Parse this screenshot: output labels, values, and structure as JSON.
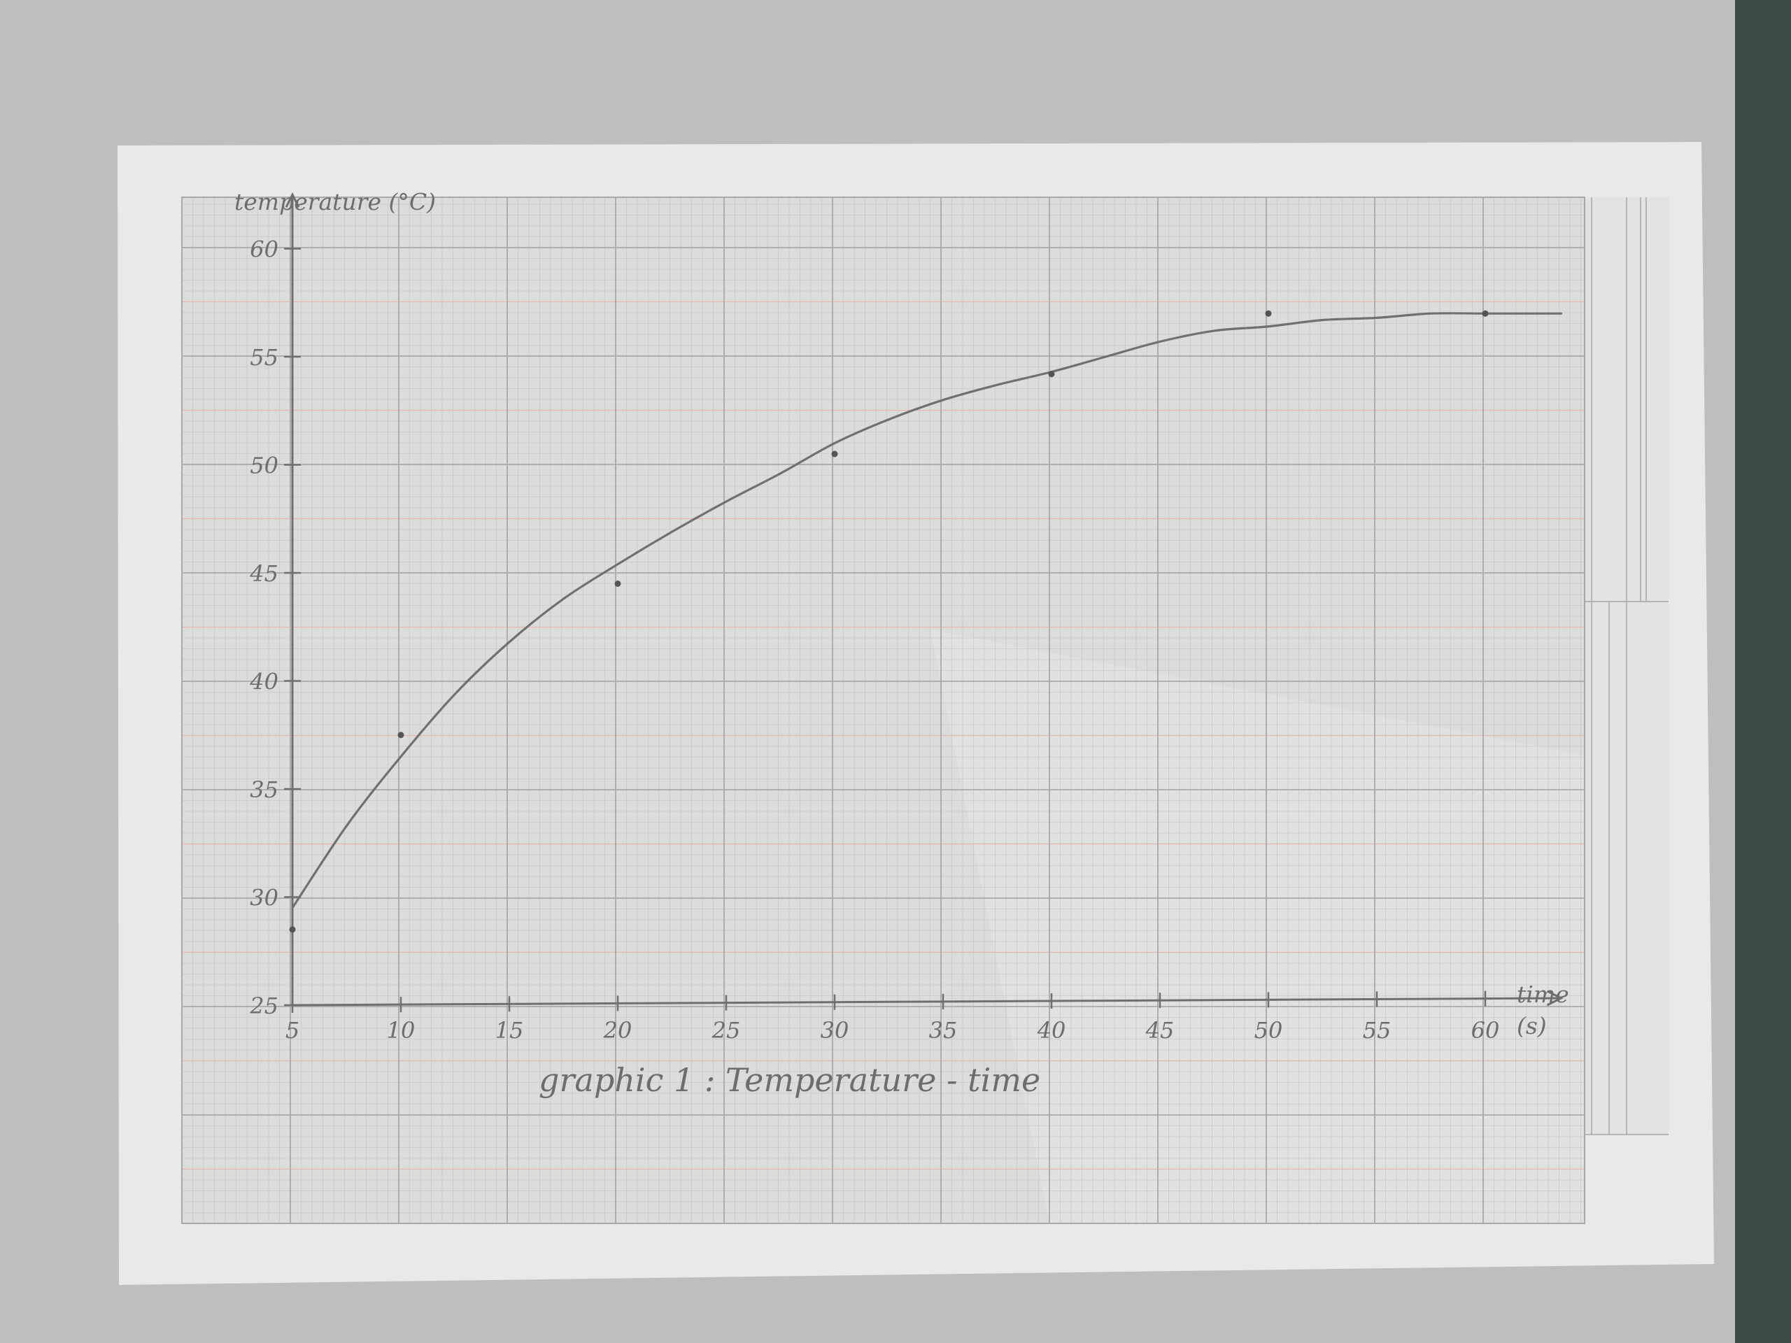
{
  "colors": {
    "background": "#bcbfbd",
    "paper": "#e9eae8",
    "grid_paper": "#dcdcda",
    "grid_fine": "#cacaca",
    "grid_major": "#a9a9a9",
    "grid_reddish": "#e2b6b0",
    "pencil": "#6f6f6f",
    "dark_edge": "#3c4a48"
  },
  "chart_data": {
    "type": "line",
    "title": "graphic 1 : Temperature - time",
    "ylabel": "temperature (°C)",
    "xlabel_line1": "time",
    "xlabel_line2": "(s)",
    "xlim": [
      5,
      63
    ],
    "ylim": [
      25,
      62
    ],
    "x_ticks": [
      "5",
      "10",
      "15",
      "20",
      "25",
      "30",
      "35",
      "40",
      "45",
      "50",
      "55",
      "60"
    ],
    "y_ticks": [
      "25",
      "30",
      "35",
      "40",
      "45",
      "50",
      "55",
      "60"
    ],
    "grid": true,
    "points": [
      {
        "x": 5,
        "y": 28.5
      },
      {
        "x": 10,
        "y": 37.5
      },
      {
        "x": 20,
        "y": 44.5
      },
      {
        "x": 30,
        "y": 50.5
      },
      {
        "x": 40,
        "y": 54.2
      },
      {
        "x": 50,
        "y": 57.0
      },
      {
        "x": 60,
        "y": 57.0
      }
    ],
    "curve": [
      {
        "x": 5,
        "y": 29.5
      },
      {
        "x": 7.5,
        "y": 33.3
      },
      {
        "x": 10,
        "y": 36.5
      },
      {
        "x": 12.5,
        "y": 39.4
      },
      {
        "x": 15,
        "y": 41.8
      },
      {
        "x": 17.5,
        "y": 43.8
      },
      {
        "x": 20,
        "y": 45.4
      },
      {
        "x": 22.5,
        "y": 46.9
      },
      {
        "x": 25,
        "y": 48.3
      },
      {
        "x": 27.5,
        "y": 49.6
      },
      {
        "x": 30,
        "y": 51.0
      },
      {
        "x": 32.5,
        "y": 52.1
      },
      {
        "x": 35,
        "y": 53.0
      },
      {
        "x": 37.5,
        "y": 53.7
      },
      {
        "x": 40,
        "y": 54.3
      },
      {
        "x": 42.5,
        "y": 55.0
      },
      {
        "x": 45,
        "y": 55.7
      },
      {
        "x": 47.5,
        "y": 56.2
      },
      {
        "x": 50,
        "y": 56.4
      },
      {
        "x": 52.5,
        "y": 56.7
      },
      {
        "x": 55,
        "y": 56.8
      },
      {
        "x": 57.5,
        "y": 57.0
      },
      {
        "x": 60,
        "y": 57.0
      },
      {
        "x": 63.5,
        "y": 57.0
      }
    ]
  }
}
